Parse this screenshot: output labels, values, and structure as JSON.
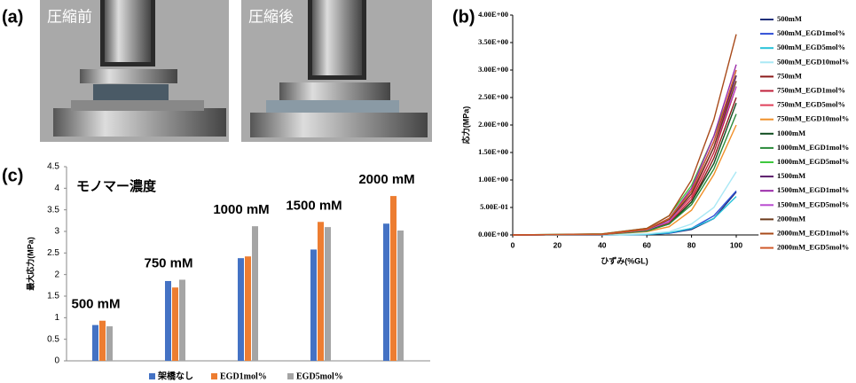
{
  "photo_panel": {
    "label": "(a)",
    "captions": [
      "圧縮前",
      "圧縮後"
    ]
  },
  "chart_data": [
    {
      "type": "line",
      "panel_label": "(b)",
      "xlabel": "ひずみ(%GL)",
      "ylabel": "応力(MPa)",
      "x": [
        0,
        40,
        60,
        70,
        80,
        90,
        100
      ],
      "xlim": [
        0,
        110
      ],
      "xticks": [
        0,
        20,
        40,
        60,
        80,
        100
      ],
      "ylim": [
        0,
        4
      ],
      "yticks": [
        {
          "value": 0,
          "label": "0.00E+00"
        },
        {
          "value": 0.5,
          "label": "5.00E-01"
        },
        {
          "value": 1,
          "label": "1.00E+00"
        },
        {
          "value": 1.5,
          "label": "1.50E+00"
        },
        {
          "value": 2,
          "label": "2.00E+00"
        },
        {
          "value": 2.5,
          "label": "2.50E+00"
        },
        {
          "value": 3,
          "label": "3.00E+00"
        },
        {
          "value": 3.5,
          "label": "3.50E+00"
        },
        {
          "value": 4,
          "label": "4.00E+00"
        }
      ],
      "legend": "right",
      "series": [
        {
          "name": "500mM",
          "color": "#1f2f7a",
          "values": [
            0,
            0,
            0.01,
            0.03,
            0.1,
            0.3,
            0.78
          ]
        },
        {
          "name": "500mM_EGD1mol%",
          "color": "#2f4fd6",
          "values": [
            0,
            0,
            0.01,
            0.03,
            0.12,
            0.35,
            0.8
          ]
        },
        {
          "name": "500mM_EGD5mol%",
          "color": "#27c2d9",
          "values": [
            0,
            0,
            0.01,
            0.04,
            0.12,
            0.3,
            0.7
          ]
        },
        {
          "name": "500mM_EGD10mol%",
          "color": "#a9e8f5",
          "values": [
            0,
            0,
            0.02,
            0.06,
            0.2,
            0.5,
            1.15
          ]
        },
        {
          "name": "750mM",
          "color": "#8b1a1a",
          "values": [
            0,
            0.01,
            0.08,
            0.2,
            0.6,
            1.4,
            2.5
          ]
        },
        {
          "name": "750mM_EGD1mol%",
          "color": "#c0203a",
          "values": [
            0,
            0.01,
            0.08,
            0.22,
            0.65,
            1.5,
            2.7
          ]
        },
        {
          "name": "750mM_EGD5mol%",
          "color": "#e0405a",
          "values": [
            0,
            0.01,
            0.1,
            0.25,
            0.7,
            1.6,
            2.9
          ]
        },
        {
          "name": "750mM_EGD10mol%",
          "color": "#f0902a",
          "values": [
            0,
            0.01,
            0.06,
            0.15,
            0.45,
            1.1,
            2.0
          ]
        },
        {
          "name": "1000mM",
          "color": "#0f4d1f",
          "values": [
            0,
            0.01,
            0.08,
            0.2,
            0.6,
            1.3,
            2.4
          ]
        },
        {
          "name": "1000mM_EGD1mol%",
          "color": "#2a8a3a",
          "values": [
            0,
            0.01,
            0.07,
            0.2,
            0.55,
            1.2,
            2.2
          ]
        },
        {
          "name": "1000mM_EGD5mol%",
          "color": "#3ec83e",
          "values": [
            0,
            0.02,
            0.12,
            0.35,
            0.9,
            1.8,
            2.9
          ]
        },
        {
          "name": "1500mM",
          "color": "#5a1a6a",
          "values": [
            0,
            0.01,
            0.1,
            0.3,
            0.8,
            1.7,
            2.9
          ]
        },
        {
          "name": "1500mM_EGD1mol%",
          "color": "#9a2aa8",
          "values": [
            0,
            0.01,
            0.1,
            0.3,
            0.85,
            1.8,
            3.1
          ]
        },
        {
          "name": "1500mM_EGD5mol%",
          "color": "#b84ad0",
          "values": [
            0,
            0.01,
            0.09,
            0.25,
            0.75,
            1.6,
            2.7
          ]
        },
        {
          "name": "2000mM",
          "color": "#6b3a1a",
          "values": [
            0,
            0.01,
            0.1,
            0.28,
            0.75,
            1.6,
            2.8
          ]
        },
        {
          "name": "2000mM_EGD1mol%",
          "color": "#a84a1a",
          "values": [
            0,
            0.02,
            0.12,
            0.35,
            1.0,
            2.1,
            3.65
          ]
        },
        {
          "name": "2000mM_EGD5mol%",
          "color": "#d05a2a",
          "values": [
            0,
            0.01,
            0.1,
            0.3,
            0.8,
            1.7,
            3.0
          ]
        }
      ]
    },
    {
      "type": "bar",
      "panel_label": "(c)",
      "ylabel": "最大応力(MPa)",
      "annotation": "モノマー濃度",
      "categories": [
        "500 mM",
        "750 mM",
        "1000 mM",
        "1500 mM",
        "2000 mM"
      ],
      "ylim": [
        0,
        4.5
      ],
      "yticks": [
        0,
        0.5,
        1,
        1.5,
        2,
        2.5,
        3,
        3.5,
        4,
        4.5
      ],
      "legend": "bottom",
      "series": [
        {
          "name": "架橋なし",
          "color": "#4472c4",
          "values": [
            0.83,
            1.85,
            2.38,
            2.58,
            3.18
          ]
        },
        {
          "name": "EGD1mol%",
          "color": "#ed7d31",
          "values": [
            0.93,
            1.7,
            2.42,
            3.22,
            3.82
          ]
        },
        {
          "name": "EGD5mol%",
          "color": "#a5a5a5",
          "values": [
            0.8,
            1.88,
            3.12,
            3.1,
            3.02
          ]
        }
      ]
    }
  ]
}
